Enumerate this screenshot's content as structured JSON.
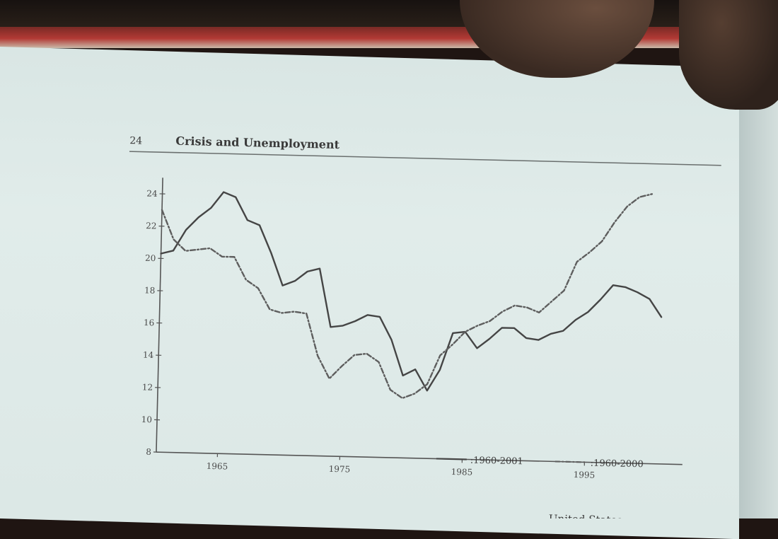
{
  "page_header": {
    "page_number": "24",
    "running_title": "Crisis and Unemployment"
  },
  "footer_fragment": "United States",
  "chart_data": {
    "type": "line",
    "title": "",
    "xlabel": "",
    "ylabel": "",
    "xlim": [
      1960,
      2003
    ],
    "ylim": [
      8,
      25
    ],
    "x_ticks": [
      1965,
      1975,
      1985,
      1995
    ],
    "y_ticks": [
      8,
      10,
      12,
      14,
      16,
      18,
      20,
      22,
      24
    ],
    "legend_position": "bottom-right",
    "series": [
      {
        "name": "1960-2001",
        "style": "solid",
        "color": "#454545",
        "x": [
          1960,
          1961,
          1962,
          1963,
          1964,
          1965,
          1966,
          1967,
          1968,
          1969,
          1970,
          1971,
          1972,
          1973,
          1974,
          1975,
          1976,
          1977,
          1978,
          1979,
          1980,
          1981,
          1982,
          1983,
          1984,
          1985,
          1986,
          1987,
          1988,
          1989,
          1990,
          1991,
          1992,
          1993,
          1994,
          1995,
          1996,
          1997,
          1998,
          1999,
          2000,
          2001
        ],
        "y": [
          20.3,
          20.5,
          21.8,
          22.6,
          23.2,
          24.2,
          23.9,
          22.5,
          22.2,
          20.5,
          18.5,
          18.8,
          19.4,
          19.6,
          16.0,
          16.1,
          16.4,
          16.8,
          16.7,
          15.3,
          13.1,
          13.5,
          12.2,
          13.5,
          15.8,
          15.9,
          14.9,
          15.5,
          16.2,
          16.2,
          15.6,
          15.5,
          15.9,
          16.1,
          16.8,
          17.3,
          18.1,
          19.0,
          18.9,
          18.6,
          18.2,
          17.1
        ]
      },
      {
        "name": "1960-2000",
        "style": "dash-dot",
        "color": "#5e5e5e",
        "x": [
          1960,
          1961,
          1962,
          1963,
          1964,
          1965,
          1966,
          1967,
          1968,
          1969,
          1970,
          1971,
          1972,
          1973,
          1974,
          1975,
          1976,
          1977,
          1978,
          1979,
          1980,
          1981,
          1982,
          1983,
          1984,
          1985,
          1986,
          1987,
          1988,
          1989,
          1990,
          1991,
          1992,
          1993,
          1994,
          1995,
          1996,
          1997,
          1998,
          1999,
          2000
        ],
        "y": [
          23.0,
          21.2,
          20.5,
          20.6,
          20.7,
          20.2,
          20.2,
          18.8,
          18.3,
          17.0,
          16.8,
          16.9,
          16.8,
          14.2,
          12.8,
          13.6,
          14.3,
          14.4,
          13.9,
          12.2,
          11.7,
          12.0,
          12.6,
          14.4,
          15.1,
          15.9,
          16.3,
          16.6,
          17.2,
          17.6,
          17.5,
          17.2,
          17.9,
          18.6,
          20.4,
          21.0,
          21.7,
          22.9,
          23.9,
          24.5,
          24.7
        ]
      }
    ]
  }
}
